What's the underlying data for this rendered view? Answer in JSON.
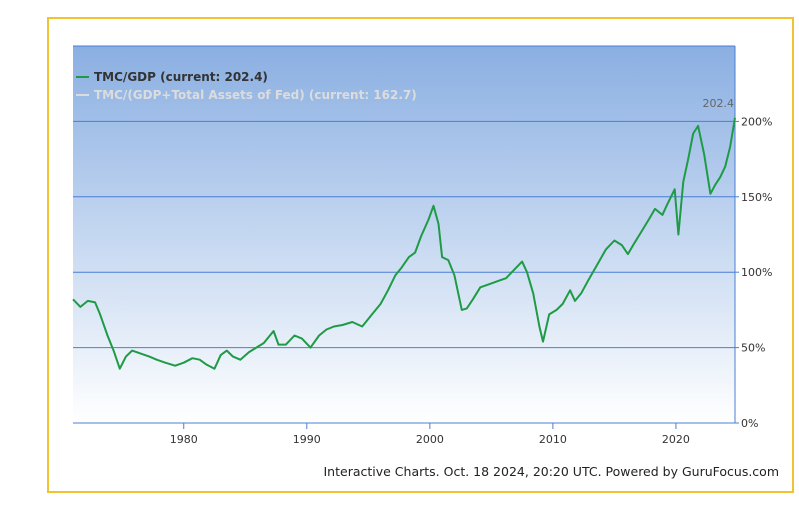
{
  "chart_data": {
    "type": "line",
    "xlim": [
      1971,
      2024.8
    ],
    "ylim": [
      0,
      250
    ],
    "x_ticks": [
      1980,
      1990,
      2000,
      2010,
      2020
    ],
    "y_ticks": [
      0,
      50,
      100,
      150,
      200
    ],
    "y_tick_labels": [
      "0%",
      "50%",
      "100%",
      "150%",
      "200%"
    ],
    "grid": true,
    "legend_position": "top-left",
    "current_label": "202.4",
    "series": [
      {
        "name": "TMC/GDP (current: 202.4)",
        "color": "#1e9b45",
        "visible": true,
        "x": [
          1971.0,
          1971.6,
          1972.2,
          1972.8,
          1973.2,
          1973.8,
          1974.3,
          1974.8,
          1975.3,
          1975.8,
          1976.5,
          1977.2,
          1977.8,
          1978.5,
          1979.3,
          1980.0,
          1980.7,
          1981.3,
          1981.8,
          1982.5,
          1983.0,
          1983.5,
          1984.0,
          1984.6,
          1985.3,
          1985.9,
          1986.5,
          1987.3,
          1987.7,
          1988.3,
          1989.0,
          1989.6,
          1990.3,
          1991.0,
          1991.6,
          1992.2,
          1992.9,
          1993.7,
          1994.5,
          1995.3,
          1996.0,
          1996.6,
          1997.2,
          1997.7,
          1998.3,
          1998.8,
          1999.3,
          1999.9,
          2000.3,
          2000.7,
          2001.0,
          2001.5,
          2002.0,
          2002.6,
          2003.0,
          2003.5,
          2004.1,
          2004.8,
          2005.5,
          2006.2,
          2006.9,
          2007.5,
          2007.9,
          2008.4,
          2008.9,
          2009.2,
          2009.7,
          2010.3,
          2010.8,
          2011.4,
          2011.8,
          2012.3,
          2012.9,
          2013.6,
          2014.3,
          2015.0,
          2015.6,
          2016.1,
          2016.6,
          2017.2,
          2017.8,
          2018.3,
          2018.9,
          2019.3,
          2019.9,
          2020.2,
          2020.6,
          2021.0,
          2021.4,
          2021.8,
          2022.3,
          2022.8,
          2023.2,
          2023.6,
          2024.0,
          2024.4,
          2024.8
        ],
        "y": [
          82,
          77,
          81,
          80,
          72,
          58,
          48,
          36,
          44,
          48,
          46,
          44,
          42,
          40,
          38,
          40,
          43,
          42,
          39,
          36,
          45,
          48,
          44,
          42,
          47,
          50,
          53,
          61,
          52,
          52,
          58,
          56,
          50,
          58,
          62,
          64,
          65,
          67,
          64,
          72,
          79,
          88,
          98,
          103,
          110,
          113,
          124,
          135,
          144,
          132,
          110,
          108,
          98,
          75,
          76,
          82,
          90,
          92,
          94,
          96,
          102,
          107,
          100,
          86,
          64,
          54,
          72,
          75,
          79,
          88,
          81,
          86,
          95,
          105,
          115,
          121,
          118,
          112,
          119,
          127,
          135,
          142,
          138,
          145,
          155,
          125,
          160,
          175,
          192,
          197,
          178,
          152,
          158,
          163,
          170,
          183,
          202.4
        ]
      },
      {
        "name": "TMC/(GDP+Total Assets of Fed) (current: 162.7)",
        "color": "#dcdcdc",
        "visible": false,
        "x": [],
        "y": []
      }
    ],
    "credit": "Interactive Charts. Oct. 18 2024, 20:20 UTC. Powered by GuruFocus.com"
  }
}
